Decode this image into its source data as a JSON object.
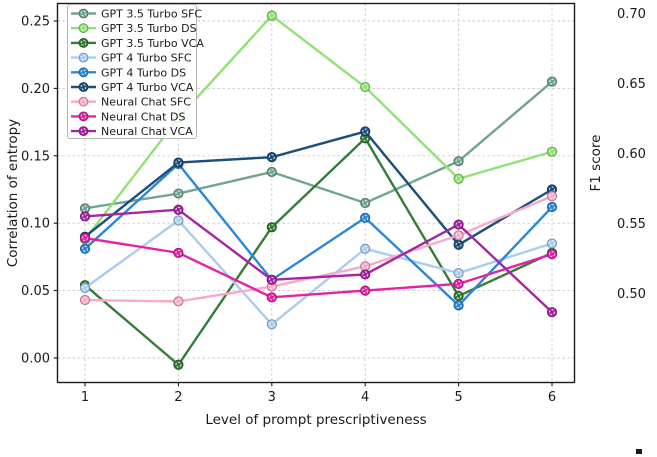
{
  "chart_data": {
    "type": "line",
    "title": "",
    "xlabel": "Level of prompt prescriptiveness",
    "ylabel": "Correlation of entropy",
    "x": [
      1,
      2,
      3,
      4,
      5,
      6
    ],
    "xtick_labels": [
      "1",
      "2",
      "3",
      "4",
      "5",
      "6"
    ],
    "ytick_values": [
      0.0,
      0.05,
      0.1,
      0.15,
      0.2,
      0.25
    ],
    "ytick_labels": [
      "0.00",
      "0.05",
      "0.10",
      "0.15",
      "0.20",
      "0.25"
    ],
    "xlim": [
      0.7,
      6.25
    ],
    "ylim": [
      -0.018,
      0.263
    ],
    "grid": true,
    "grid_style": "dashed",
    "legend_position": "upper left",
    "series": [
      {
        "name": "GPT 3.5 Turbo SFC",
        "color": "#72a492",
        "values": [
          0.111,
          0.122,
          0.138,
          0.115,
          0.146,
          0.205
        ]
      },
      {
        "name": "GPT 3.5 Turbo DS",
        "color": "#8fe374",
        "values": [
          0.088,
          0.178,
          0.254,
          0.201,
          0.133,
          0.153
        ]
      },
      {
        "name": "GPT 3.5 Turbo VCA",
        "color": "#337d35",
        "values": [
          0.054,
          -0.005,
          0.097,
          0.163,
          0.046,
          0.078
        ]
      },
      {
        "name": "GPT 4 Turbo SFC",
        "color": "#a8cdf0",
        "values": [
          0.052,
          0.102,
          0.025,
          0.081,
          0.063,
          0.085
        ]
      },
      {
        "name": "GPT 4 Turbo DS",
        "color": "#2d87d8",
        "values": [
          0.081,
          0.144,
          0.058,
          0.104,
          0.039,
          0.112
        ]
      },
      {
        "name": "GPT 4 Turbo VCA",
        "color": "#1d4f7c",
        "values": [
          0.09,
          0.145,
          0.149,
          0.168,
          0.084,
          0.125
        ]
      },
      {
        "name": "Neural Chat SFC",
        "color": "#f9a9cb",
        "values": [
          0.043,
          0.042,
          0.053,
          0.068,
          0.091,
          0.12
        ]
      },
      {
        "name": "Neural Chat DS",
        "color": "#e322a5",
        "values": [
          0.089,
          0.078,
          0.045,
          0.05,
          0.055,
          0.077
        ]
      },
      {
        "name": "Neural Chat VCA",
        "color": "#a625a2",
        "values": [
          0.105,
          0.11,
          0.058,
          0.062,
          0.099,
          0.034
        ]
      }
    ]
  },
  "right_fragment": {
    "ylabel": "F1 score",
    "tick_labels": [
      "0.70",
      "0.65",
      "0.60",
      "0.55",
      "0.50"
    ]
  }
}
